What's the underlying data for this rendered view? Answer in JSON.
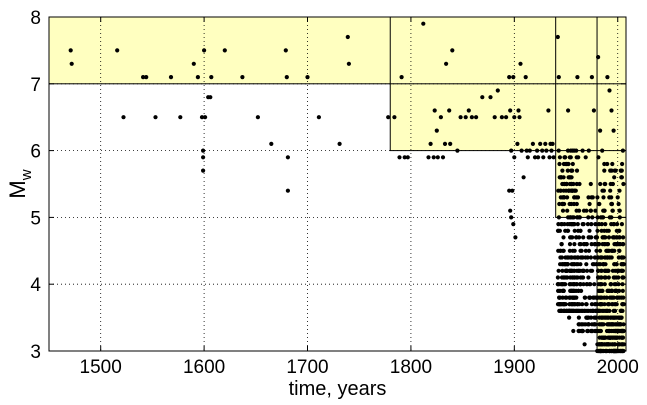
{
  "chart_data": {
    "type": "scatter",
    "xlabel": "time, years",
    "ylabel": "M",
    "ylabel_subscript": "w",
    "xlim": [
      1450,
      2008
    ],
    "ylim": [
      3,
      8
    ],
    "xticks": [
      1500,
      1600,
      1700,
      1800,
      1900,
      2000
    ],
    "yticks": [
      3,
      4,
      5,
      6,
      7,
      8
    ],
    "grid": true,
    "grid_style": "dotted",
    "completeness_regions": [
      {
        "x_start": 1450,
        "magnitude_min": 7
      },
      {
        "x_start": 1780,
        "magnitude_min": 6
      },
      {
        "x_start": 1940,
        "magnitude_min": 5
      },
      {
        "x_start": 1980,
        "magnitude_min": 3
      }
    ],
    "colors": {
      "region_fill": "#ffffc0",
      "points": "#000000",
      "lines": "#000000"
    },
    "points": [
      [
        1471,
        7.5
      ],
      [
        1472,
        7.3
      ],
      [
        1516,
        7.5
      ],
      [
        1522,
        6.5
      ],
      [
        1541,
        7.1
      ],
      [
        1544,
        7.1
      ],
      [
        1553,
        6.5
      ],
      [
        1568,
        7.1
      ],
      [
        1577,
        6.5
      ],
      [
        1590,
        7.3
      ],
      [
        1594,
        7.1
      ],
      [
        1598,
        6.5
      ],
      [
        1599,
        6.0
      ],
      [
        1599,
        5.9
      ],
      [
        1599,
        5.7
      ],
      [
        1600,
        7.5
      ],
      [
        1601,
        6.5
      ],
      [
        1604,
        6.8
      ],
      [
        1606,
        6.8
      ],
      [
        1607,
        7.1
      ],
      [
        1620,
        7.5
      ],
      [
        1637,
        7.1
      ],
      [
        1652,
        6.5
      ],
      [
        1665,
        6.1
      ],
      [
        1679,
        7.5
      ],
      [
        1680,
        7.1
      ],
      [
        1681,
        5.9
      ],
      [
        1681,
        5.4
      ],
      [
        1700,
        7.1
      ],
      [
        1711,
        6.5
      ],
      [
        1731,
        6.1
      ],
      [
        1739,
        7.7
      ],
      [
        1740,
        7.3
      ],
      [
        1778,
        6.5
      ],
      [
        1784,
        6.5
      ],
      [
        1789,
        5.9
      ],
      [
        1791,
        7.1
      ],
      [
        1794,
        5.9
      ],
      [
        1797,
        5.9
      ],
      [
        1812,
        7.9
      ],
      [
        1817,
        5.9
      ],
      [
        1819,
        6.1
      ],
      [
        1822,
        5.9
      ],
      [
        1823,
        6.6
      ],
      [
        1825,
        6.3
      ],
      [
        1826,
        5.9
      ],
      [
        1829,
        6.5
      ],
      [
        1831,
        5.9
      ],
      [
        1833,
        6.1
      ],
      [
        1834,
        7.3
      ],
      [
        1837,
        6.6
      ],
      [
        1838,
        6.1
      ],
      [
        1840,
        7.5
      ],
      [
        1845,
        6.0
      ],
      [
        1848,
        6.5
      ],
      [
        1853,
        6.5
      ],
      [
        1856,
        6.6
      ],
      [
        1859,
        6.5
      ],
      [
        1863,
        6.5
      ],
      [
        1869,
        6.8
      ],
      [
        1877,
        6.8
      ],
      [
        1881,
        6.5
      ],
      [
        1884,
        6.9
      ],
      [
        1888,
        6.5
      ],
      [
        1892,
        6.5
      ],
      [
        1895,
        7.1
      ],
      [
        1895,
        5.4
      ],
      [
        1896,
        6.6
      ],
      [
        1896,
        5.1
      ],
      [
        1897,
        6.0
      ],
      [
        1897,
        5.0
      ],
      [
        1898,
        5.4
      ],
      [
        1899,
        7.1
      ],
      [
        1899,
        4.9
      ],
      [
        1900,
        6.5
      ],
      [
        1900,
        5.9
      ],
      [
        1901,
        4.7
      ],
      [
        1903,
        6.1
      ],
      [
        1904,
        6.6
      ],
      [
        1905,
        6.5
      ],
      [
        1906,
        7.3
      ],
      [
        1907,
        6.0
      ],
      [
        1909,
        5.6
      ],
      [
        1911,
        7.1
      ],
      [
        1912,
        6.0
      ],
      [
        1913,
        5.9
      ],
      [
        1915,
        6.0
      ],
      [
        1918,
        6.1
      ],
      [
        1920,
        5.9
      ],
      [
        1922,
        6.0
      ],
      [
        1923,
        5.9
      ],
      [
        1925,
        6.1
      ],
      [
        1927,
        6.0
      ],
      [
        1928,
        5.9
      ],
      [
        1930,
        6.1
      ],
      [
        1931,
        6.0
      ],
      [
        1933,
        6.6
      ],
      [
        1934,
        5.9
      ],
      [
        1935,
        6.1
      ],
      [
        1936,
        6.0
      ],
      [
        1937,
        6.1
      ],
      [
        1938,
        5.9
      ],
      [
        1942,
        7.7
      ],
      [
        1943,
        7.1
      ],
      [
        1952,
        6.6
      ],
      [
        1961,
        7.1
      ],
      [
        1963,
        5.5
      ],
      [
        1966,
        6.0
      ],
      [
        1969,
        5.9
      ],
      [
        1972,
        6.0
      ],
      [
        1975,
        7.1
      ],
      [
        1977,
        6.6
      ],
      [
        1974,
        5.5
      ],
      [
        1976,
        4.3
      ],
      [
        1972,
        3.4
      ],
      [
        1968,
        3.1
      ],
      [
        1966,
        3.6
      ],
      [
        1966,
        3.3
      ],
      [
        1962,
        3.9
      ],
      [
        1957,
        3.3
      ],
      [
        1953,
        3.5
      ],
      [
        1958,
        4.1
      ],
      [
        1968,
        4.6
      ],
      [
        1970,
        4.0
      ],
      [
        1964,
        4.5
      ],
      [
        1981,
        7.4
      ],
      [
        1983,
        6.3
      ],
      [
        1985,
        6.0
      ],
      [
        1987,
        5.8
      ],
      [
        1990,
        7.1
      ],
      [
        1992,
        6.9
      ],
      [
        1994,
        6.6
      ],
      [
        1996,
        6.3
      ],
      [
        1998,
        5.7
      ],
      [
        2000,
        5.3
      ],
      [
        2002,
        5.0
      ],
      [
        2005,
        6.0
      ],
      [
        2004,
        4.9
      ]
    ],
    "dense_bands": [
      {
        "x_from": 1942,
        "x_to": 1962,
        "y_from": 3.6,
        "y_to": 6.0,
        "count": 300
      },
      {
        "x_from": 1962,
        "x_to": 1980,
        "y_from": 3.3,
        "y_to": 5.4,
        "count": 150
      },
      {
        "x_from": 1980,
        "x_to": 2006,
        "y_from": 3.0,
        "y_to": 4.8,
        "count": 420
      },
      {
        "x_from": 1980,
        "x_to": 2006,
        "y_from": 4.8,
        "y_to": 5.9,
        "count": 60
      }
    ]
  }
}
